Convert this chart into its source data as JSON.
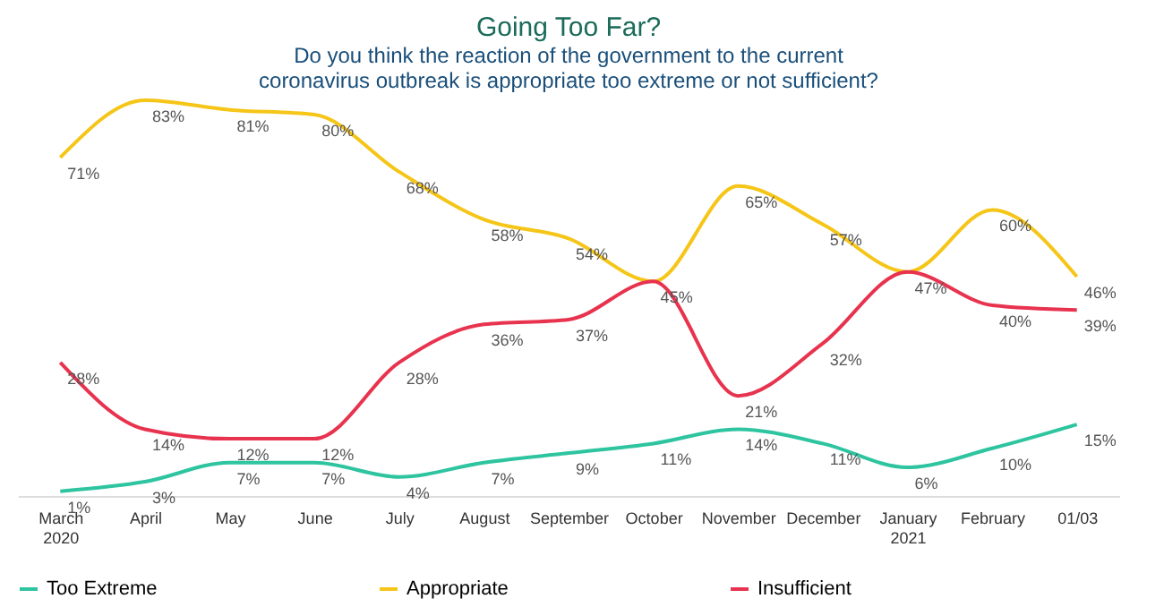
{
  "chart_data": {
    "type": "line",
    "title": "Going Too Far?",
    "subtitle": "Do you think the reaction of the government to the current coronavirus outbreak is appropriate too extreme or not sufficient?",
    "categories": [
      "March 2020",
      "April",
      "May",
      "June",
      "July",
      "August",
      "September",
      "October",
      "November",
      "December",
      "January 2021",
      "February",
      "01/03"
    ],
    "series": [
      {
        "name": "Too Extreme",
        "color": "#2ec4a0",
        "values": [
          1,
          3,
          7,
          7,
          4,
          7,
          9,
          11,
          14,
          11,
          6,
          10,
          15
        ],
        "value_labels": [
          "1%",
          "3%",
          "7%",
          "7%",
          "4%",
          "7%",
          "9%",
          "11%",
          "14%",
          "11%",
          "6%",
          "10%",
          "15%"
        ]
      },
      {
        "name": "Appropriate",
        "color": "#f5c518",
        "values": [
          71,
          83,
          81,
          80,
          68,
          58,
          54,
          45,
          65,
          57,
          47,
          60,
          46
        ],
        "value_labels": [
          "71%",
          "83%",
          "81%",
          "80%",
          "68%",
          "58%",
          "54%",
          "45%",
          "65%",
          "57%",
          "47%",
          "60%",
          "46%"
        ]
      },
      {
        "name": "Insufficient",
        "color": "#e8334f",
        "values": [
          28,
          14,
          12,
          12,
          28,
          36,
          37,
          45,
          21,
          32,
          47,
          40,
          39
        ],
        "value_labels": [
          "28%",
          "14%",
          "12%",
          "12%",
          "28%",
          "36%",
          "37%",
          null,
          "21%",
          "32%",
          null,
          "40%",
          "39%"
        ]
      }
    ],
    "tick_labels": "x",
    "grid": false,
    "legend": "bottom",
    "marker": "none",
    "line_style": "solid"
  }
}
